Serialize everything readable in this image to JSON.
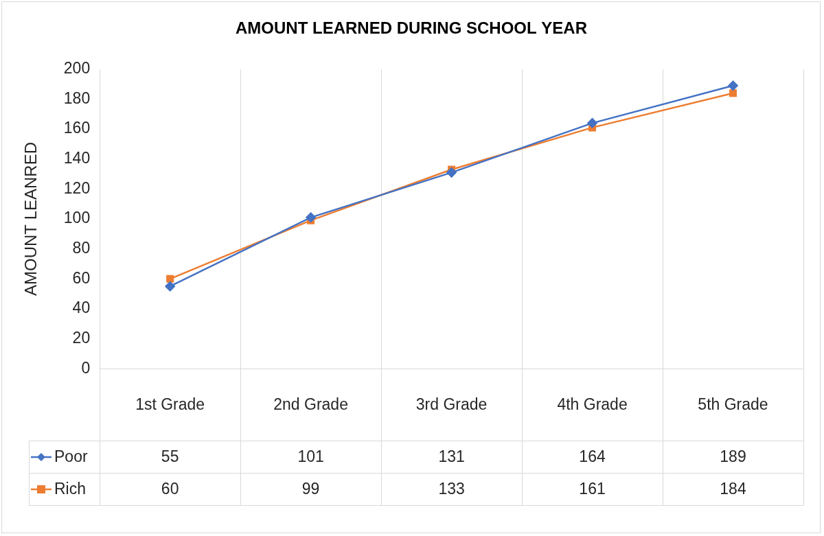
{
  "chart_data": {
    "type": "line",
    "title": "AMOUNT LEARNED DURING SCHOOL YEAR",
    "y_label": "AMOUNT LEANRED",
    "categories": [
      "1st Grade",
      "2nd Grade",
      "3rd Grade",
      "4th Grade",
      "5th Grade"
    ],
    "series": [
      {
        "name": "Poor",
        "color": "#4472c4",
        "marker": "diamond",
        "values": [
          55,
          101,
          131,
          164,
          189
        ]
      },
      {
        "name": "Rich",
        "color": "#ed7d31",
        "marker": "square",
        "values": [
          60,
          99,
          133,
          161,
          184
        ]
      }
    ],
    "ylim": [
      0,
      200
    ],
    "yticks": [
      0,
      20,
      40,
      60,
      80,
      100,
      120,
      140,
      160,
      180,
      200
    ],
    "grid": "x"
  }
}
